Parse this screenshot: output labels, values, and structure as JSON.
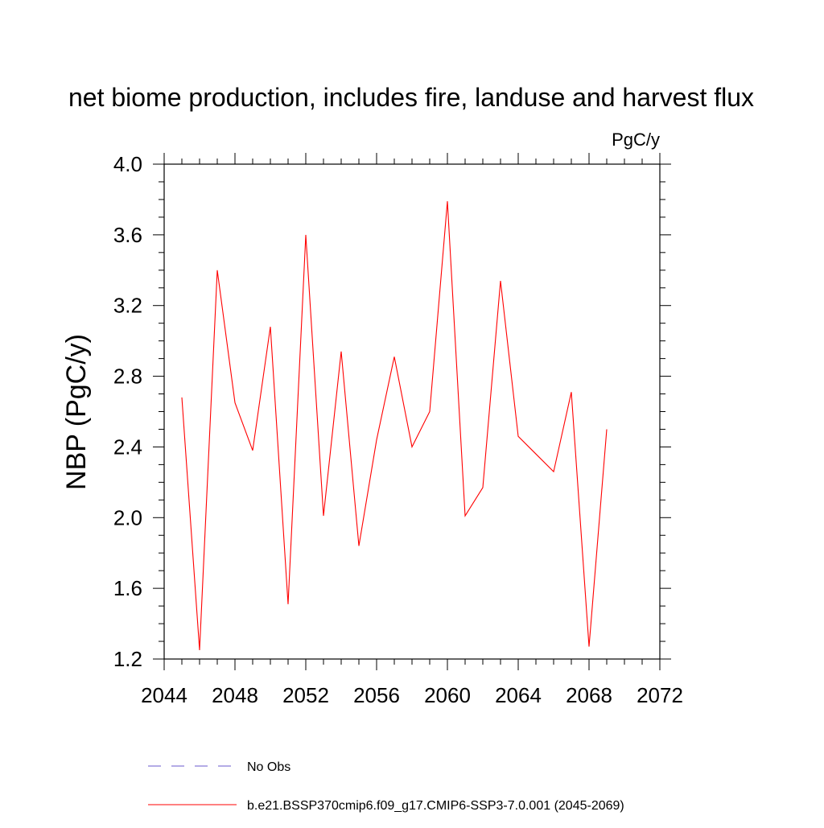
{
  "chart_data": {
    "type": "line",
    "title": "net biome production, includes fire, landuse and harvest flux",
    "units_label": "PgC/y",
    "xlabel": "",
    "ylabel": "NBP  (PgC/y)",
    "xlim": [
      2044,
      2072
    ],
    "ylim": [
      1.2,
      4.0
    ],
    "x_ticks": [
      "2044",
      "2048",
      "2052",
      "2056",
      "2060",
      "2064",
      "2068",
      "2072"
    ],
    "y_ticks": [
      "1.2",
      "1.6",
      "2.0",
      "2.4",
      "2.8",
      "3.2",
      "3.6",
      "4.0"
    ],
    "grid": false,
    "legend_position": "bottom",
    "series": [
      {
        "name": "b.e21.BSSP370cmip6.f09_g17.CMIP6-SSP3-7.0.001 (2045-2069)",
        "color": "#ff0000",
        "dash": "solid",
        "x": [
          2045,
          2046,
          2047,
          2048,
          2049,
          2050,
          2051,
          2052,
          2053,
          2054,
          2055,
          2056,
          2057,
          2058,
          2059,
          2060,
          2061,
          2062,
          2063,
          2064,
          2065,
          2066,
          2067,
          2068,
          2069
        ],
        "values": [
          2.68,
          1.25,
          3.4,
          2.65,
          2.38,
          3.08,
          1.51,
          3.6,
          2.01,
          2.94,
          1.84,
          2.44,
          2.91,
          2.4,
          2.6,
          3.79,
          2.01,
          2.17,
          3.34,
          2.46,
          2.36,
          2.26,
          2.71,
          1.27,
          2.5
        ]
      }
    ],
    "legend": [
      {
        "label": "No Obs",
        "color": "#6a5acd",
        "dash": "dashed"
      },
      {
        "label": "b.e21.BSSP370cmip6.f09_g17.CMIP6-SSP3-7.0.001 (2045-2069)",
        "color": "#ff0000",
        "dash": "solid"
      }
    ]
  }
}
